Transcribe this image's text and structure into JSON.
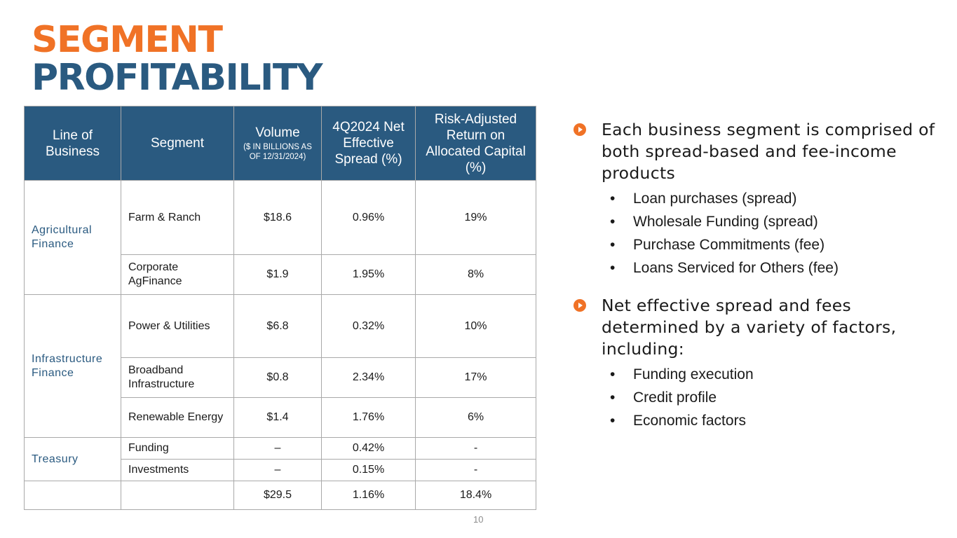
{
  "title": {
    "line1": "SEGMENT",
    "line2": "PROFITABILITY"
  },
  "table": {
    "headers": {
      "line_of_business": "Line of Business",
      "segment": "Segment",
      "volume": "Volume",
      "volume_sub": "($ IN BILLIONS AS OF 12/31/2024)",
      "spread": "4Q2024 Net Effective Spread (%)",
      "return": "Risk-Adjusted Return on Allocated Capital (%)"
    },
    "groups": [
      {
        "label": "Agricultural Finance"
      },
      {
        "label": "Infrastructure Finance"
      },
      {
        "label": "Treasury"
      }
    ],
    "rows": [
      {
        "segment": "Farm & Ranch",
        "volume": "$18.6",
        "spread": "0.96%",
        "return": "19%"
      },
      {
        "segment": "Corporate AgFinance",
        "volume": "$1.9",
        "spread": "1.95%",
        "return": "8%"
      },
      {
        "segment": "Power & Utilities",
        "volume": "$6.8",
        "spread": "0.32%",
        "return": "10%"
      },
      {
        "segment": "Broadband Infrastructure",
        "volume": "$0.8",
        "spread": "2.34%",
        "return": "17%"
      },
      {
        "segment": "Renewable Energy",
        "volume": "$1.4",
        "spread": "1.76%",
        "return": "6%"
      },
      {
        "segment": "Funding",
        "volume": "–",
        "spread": "0.42%",
        "return": "-"
      },
      {
        "segment": "Investments",
        "volume": "–",
        "spread": "0.15%",
        "return": "-"
      }
    ],
    "total": {
      "volume": "$29.5",
      "spread": "1.16%",
      "return": "18.4%"
    }
  },
  "bullets": [
    {
      "text": "Each business segment is comprised of both spread-based and fee-income products",
      "items": [
        "Loan purchases (spread)",
        "Wholesale Funding (spread)",
        "Purchase Commitments (fee)",
        "Loans Serviced for Others (fee)"
      ]
    },
    {
      "text": "Net effective spread and fees determined by a variety of factors, including:",
      "items": [
        "Funding execution",
        "Credit profile",
        "Economic factors"
      ]
    }
  ],
  "page_number": "10",
  "colors": {
    "orange": "#f07226",
    "navy": "#2a5a80"
  },
  "icons": {
    "bullet": "orange-circle-play-icon"
  }
}
